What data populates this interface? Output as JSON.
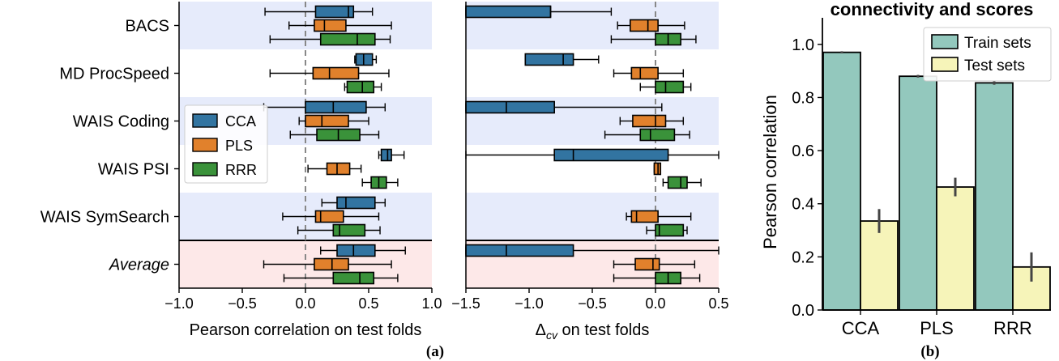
{
  "captions": {
    "a": "(a)",
    "b": "(b)"
  },
  "chart_data": [
    {
      "type": "box",
      "panel": "a-left",
      "xlabel": "Pearson correlation on test folds",
      "xlim": [
        -1.0,
        1.0
      ],
      "xticks": [
        "−1.0",
        "−0.5",
        "0.0",
        "0.5",
        "1.0"
      ],
      "rows": [
        "BACS",
        "MD ProcSpeed",
        "WAIS Coding",
        "WAIS PSI",
        "WAIS SymSearch",
        "Average"
      ],
      "highlighted_rows": [
        "BACS",
        "WAIS Coding",
        "WAIS SymSearch"
      ],
      "average_row": "Average",
      "series_colors": {
        "CCA": "#3274a1",
        "PLS": "#e1812c",
        "RRR": "#3a923a"
      },
      "legend": {
        "entries": [
          "CCA",
          "PLS",
          "RRR"
        ],
        "placement": "center-left"
      },
      "reference_line_x": 0.0,
      "boxes": {
        "CCA": [
          {
            "whislo": -0.32,
            "q1": 0.08,
            "med": 0.34,
            "q3": 0.38,
            "whishi": 0.53
          },
          {
            "whislo": 0.39,
            "q1": 0.4,
            "med": 0.46,
            "q3": 0.53,
            "whishi": 0.56
          },
          {
            "whislo": -0.33,
            "q1": 0.0,
            "med": 0.22,
            "q3": 0.48,
            "whishi": 0.63
          },
          {
            "whislo": 0.58,
            "q1": 0.6,
            "med": 0.65,
            "q3": 0.68,
            "whishi": 0.78
          },
          {
            "whislo": 0.13,
            "q1": 0.25,
            "med": 0.32,
            "q3": 0.55,
            "whishi": 0.63
          },
          {
            "whislo": 0.12,
            "q1": 0.25,
            "med": 0.38,
            "q3": 0.55,
            "whishi": 0.79
          }
        ],
        "PLS": [
          {
            "whislo": -0.13,
            "q1": 0.07,
            "med": 0.15,
            "q3": 0.32,
            "whishi": 0.68
          },
          {
            "whislo": -0.28,
            "q1": 0.06,
            "med": 0.19,
            "q3": 0.42,
            "whishi": 0.66
          },
          {
            "whislo": -0.05,
            "q1": 0.0,
            "med": 0.13,
            "q3": 0.34,
            "whishi": 0.5
          },
          {
            "whislo": 0.02,
            "q1": 0.17,
            "med": 0.25,
            "q3": 0.35,
            "whishi": 0.44
          },
          {
            "whislo": -0.18,
            "q1": 0.08,
            "med": 0.12,
            "q3": 0.3,
            "whishi": 0.58
          },
          {
            "whislo": -0.33,
            "q1": 0.07,
            "med": 0.21,
            "q3": 0.34,
            "whishi": 0.68
          }
        ],
        "RRR": [
          {
            "whislo": -0.28,
            "q1": 0.12,
            "med": 0.41,
            "q3": 0.55,
            "whishi": 0.67
          },
          {
            "whislo": 0.31,
            "q1": 0.33,
            "med": 0.45,
            "q3": 0.54,
            "whishi": 0.6
          },
          {
            "whislo": -0.12,
            "q1": 0.09,
            "med": 0.26,
            "q3": 0.43,
            "whishi": 0.58
          },
          {
            "whislo": 0.45,
            "q1": 0.52,
            "med": 0.58,
            "q3": 0.64,
            "whishi": 0.73
          },
          {
            "whislo": -0.06,
            "q1": 0.22,
            "med": 0.27,
            "q3": 0.47,
            "whishi": 0.59
          },
          {
            "whislo": -0.17,
            "q1": 0.22,
            "med": 0.43,
            "q3": 0.54,
            "whishi": 0.73
          }
        ]
      }
    },
    {
      "type": "box",
      "panel": "a-right",
      "xlabel_parts": {
        "delta": "Δ",
        "sub": "cv",
        "rest": " on test folds"
      },
      "xlim": [
        -1.5,
        0.5
      ],
      "xticks": [
        "−1.5",
        "−1.0",
        "−0.5",
        "0.0",
        "0.5"
      ],
      "reference_line_x": 0.0,
      "boxes": {
        "CCA": [
          {
            "whislo": -1.5,
            "q1": -1.5,
            "med": -0.83,
            "q3": -0.83,
            "whishi": -0.35
          },
          {
            "whislo": -1.03,
            "q1": -1.03,
            "med": -0.73,
            "q3": -0.65,
            "whishi": -0.45
          },
          {
            "whislo": -1.5,
            "q1": -1.5,
            "med": -1.18,
            "q3": -0.8,
            "whishi": 0.05
          },
          {
            "whislo": -1.5,
            "q1": -0.8,
            "med": -0.65,
            "q3": 0.1,
            "whishi": 0.5
          },
          {
            "whislo": null,
            "q1": null,
            "med": null,
            "q3": null,
            "whishi": null
          },
          {
            "whislo": -1.5,
            "q1": -1.5,
            "med": -1.18,
            "q3": -0.65,
            "whishi": 0.5
          }
        ],
        "PLS": [
          {
            "whislo": -0.3,
            "q1": -0.2,
            "med": -0.06,
            "q3": 0.02,
            "whishi": 0.23
          },
          {
            "whislo": -0.33,
            "q1": -0.19,
            "med": -0.12,
            "q3": 0.02,
            "whishi": 0.22
          },
          {
            "whislo": -0.28,
            "q1": -0.18,
            "med": 0.0,
            "q3": 0.08,
            "whishi": 0.22
          },
          {
            "whislo": -0.01,
            "q1": -0.01,
            "med": 0.02,
            "q3": 0.04,
            "whishi": 0.04
          },
          {
            "whislo": -0.23,
            "q1": -0.19,
            "med": -0.15,
            "q3": 0.02,
            "whishi": 0.28
          },
          {
            "whislo": -0.33,
            "q1": -0.16,
            "med": -0.02,
            "q3": 0.03,
            "whishi": 0.31
          }
        ],
        "RRR": [
          {
            "whislo": -0.35,
            "q1": 0.0,
            "med": 0.1,
            "q3": 0.2,
            "whishi": 0.32
          },
          {
            "whislo": -0.12,
            "q1": 0.0,
            "med": 0.08,
            "q3": 0.22,
            "whishi": 0.28
          },
          {
            "whislo": -0.4,
            "q1": -0.12,
            "med": -0.04,
            "q3": 0.15,
            "whishi": 0.27
          },
          {
            "whislo": 0.06,
            "q1": 0.1,
            "med": 0.2,
            "q3": 0.25,
            "whishi": 0.36
          },
          {
            "whislo": -0.07,
            "q1": 0.0,
            "med": 0.03,
            "q3": 0.22,
            "whishi": 0.25
          },
          {
            "whislo": -0.33,
            "q1": 0.0,
            "med": 0.1,
            "q3": 0.2,
            "whishi": 0.35
          }
        ]
      }
    },
    {
      "type": "bar",
      "panel": "b",
      "title": "connectivity and scores",
      "ylabel": "Pearson correlation",
      "ylim": [
        0.0,
        1.1
      ],
      "yticks": [
        "0.0",
        "0.2",
        "0.4",
        "0.6",
        "0.8",
        "1.0"
      ],
      "categories": [
        "CCA",
        "PLS",
        "RRR"
      ],
      "legend": {
        "placement": "top-right"
      },
      "series": [
        {
          "name": "Train sets",
          "color": "#93c8bd",
          "values": [
            0.97,
            0.88,
            0.855
          ],
          "err": [
            0.004,
            0.005,
            0.007
          ]
        },
        {
          "name": "Test sets",
          "color": "#f6f4b9",
          "values": [
            0.335,
            0.463,
            0.162
          ],
          "err": [
            0.045,
            0.035,
            0.055
          ]
        }
      ]
    }
  ]
}
